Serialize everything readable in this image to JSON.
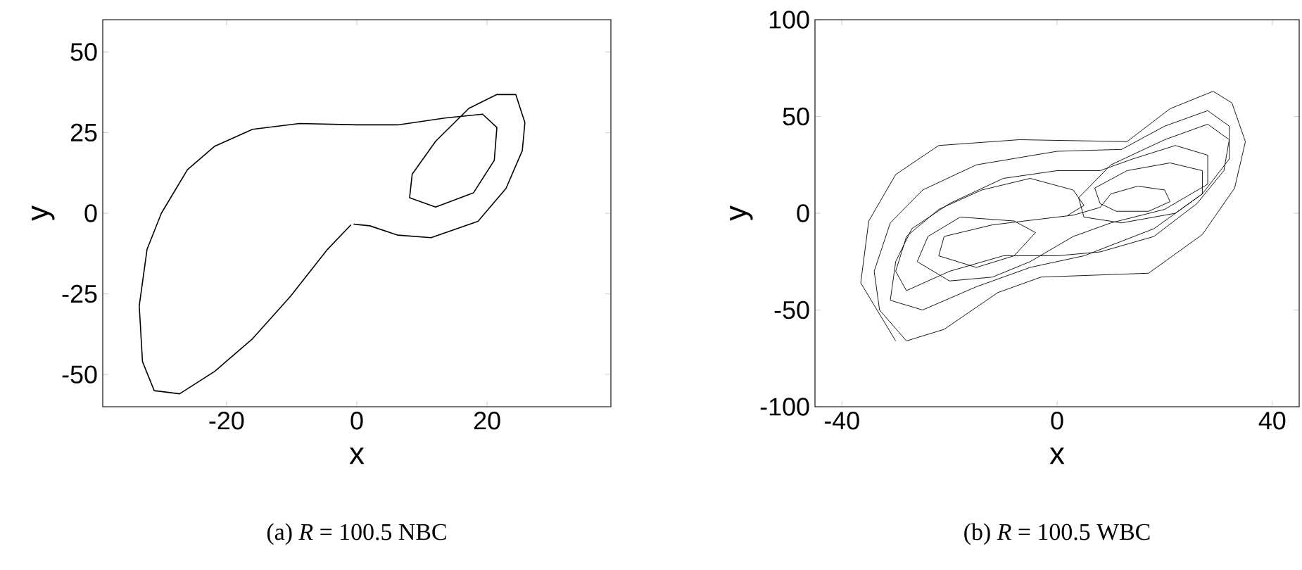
{
  "chart_data": [
    {
      "type": "line",
      "title": "(a) *R* = 100.5 NBC",
      "xlabel": "x",
      "ylabel": "y",
      "xlim": [
        -39,
        39
      ],
      "ylim": [
        -60,
        60
      ],
      "xticks": [
        -20,
        0,
        20
      ],
      "yticks": [
        -50,
        -25,
        0,
        25,
        50
      ],
      "series": [
        {
          "color": "#000000",
          "x": [
            -0.9,
            -4.5,
            -10.2,
            -16,
            -21.8,
            -27.2,
            -31.1,
            -32.9,
            -33.4,
            -32.2,
            -30,
            -26,
            -21.8,
            -16,
            -8.8,
            -0.1,
            6.3,
            13.5,
            19.3,
            21.5,
            21.1,
            17.9,
            12.1,
            8.1,
            8.5,
            12.1,
            17.2,
            21.5,
            24.4,
            25.8,
            25.4,
            22.9,
            18.6,
            11.4,
            6.3,
            2,
            -0.5
          ],
          "values": [
            -3.6,
            -11.2,
            -25.8,
            -38.9,
            -49,
            -56,
            -55,
            -46,
            -28.7,
            -11.2,
            0,
            13.5,
            20.8,
            26,
            27.8,
            27.4,
            27.4,
            29.5,
            30.7,
            26.6,
            16.4,
            6.3,
            1.9,
            4.8,
            12.1,
            22.3,
            32.5,
            36.8,
            36.8,
            28.1,
            19.4,
            7.7,
            -2.5,
            -7.6,
            -6.8,
            -3.9,
            -3.4
          ]
        }
      ]
    },
    {
      "type": "line",
      "title": "(b) *R* = 100.5 WBC",
      "xlabel": "x",
      "ylabel": "y",
      "xlim": [
        -45,
        45
      ],
      "ylim": [
        -100,
        100
      ],
      "xticks": [
        -40,
        0,
        40
      ],
      "yticks": [
        -100,
        -50,
        0,
        50,
        100
      ],
      "series": [
        {
          "color": "#000000",
          "x": [
            -30,
            -36.5,
            -35,
            -30,
            -22,
            -7,
            13,
            21,
            29,
            32.5,
            35,
            33,
            27,
            17,
            -3,
            -11,
            -21,
            -28,
            -33,
            -34,
            -31,
            -25,
            -15,
            0,
            12,
            20,
            28,
            32,
            32,
            27,
            18,
            5,
            -5,
            -15,
            -25,
            -31,
            -30,
            -27,
            -20,
            -10,
            0,
            8,
            14,
            22,
            28,
            28,
            20,
            10,
            3,
            -5,
            -12,
            -20,
            -26,
            -24,
            -18,
            -8,
            -4,
            -8,
            -15,
            -22,
            -21,
            -12,
            -3,
            3,
            8,
            10,
            15,
            20,
            21,
            17,
            11,
            8,
            7,
            13,
            21,
            27,
            27,
            22,
            12,
            5,
            4,
            10,
            20,
            28,
            32,
            31,
            26,
            18,
            8,
            0,
            -10,
            -20,
            -28,
            -30,
            -28,
            -22,
            -14,
            -5,
            3,
            5,
            2
          ],
          "values": [
            -66,
            -36,
            -4,
            20,
            35,
            38,
            37,
            54,
            63,
            57,
            37,
            13,
            -11,
            -31,
            -33,
            -41,
            -60,
            -66,
            -50,
            -30,
            -5,
            12,
            25,
            32,
            33,
            45,
            53,
            45,
            28,
            10,
            -8,
            -22,
            -28,
            -38,
            -50,
            -45,
            -25,
            -8,
            5,
            18,
            22,
            22,
            28,
            35,
            30,
            15,
            2,
            -5,
            -12,
            -25,
            -33,
            -35,
            -25,
            -12,
            -2,
            -4,
            -10,
            -22,
            -28,
            -22,
            -12,
            -6,
            -3,
            -1,
            3,
            10,
            14,
            12,
            6,
            1,
            1,
            5,
            13,
            22,
            26,
            22,
            10,
            0,
            -5,
            -2,
            8,
            25,
            38,
            46,
            38,
            22,
            5,
            -12,
            -20,
            -22,
            -22,
            -30,
            -40,
            -30,
            -12,
            2,
            12,
            18,
            12,
            4,
            -1
          ]
        }
      ]
    }
  ]
}
